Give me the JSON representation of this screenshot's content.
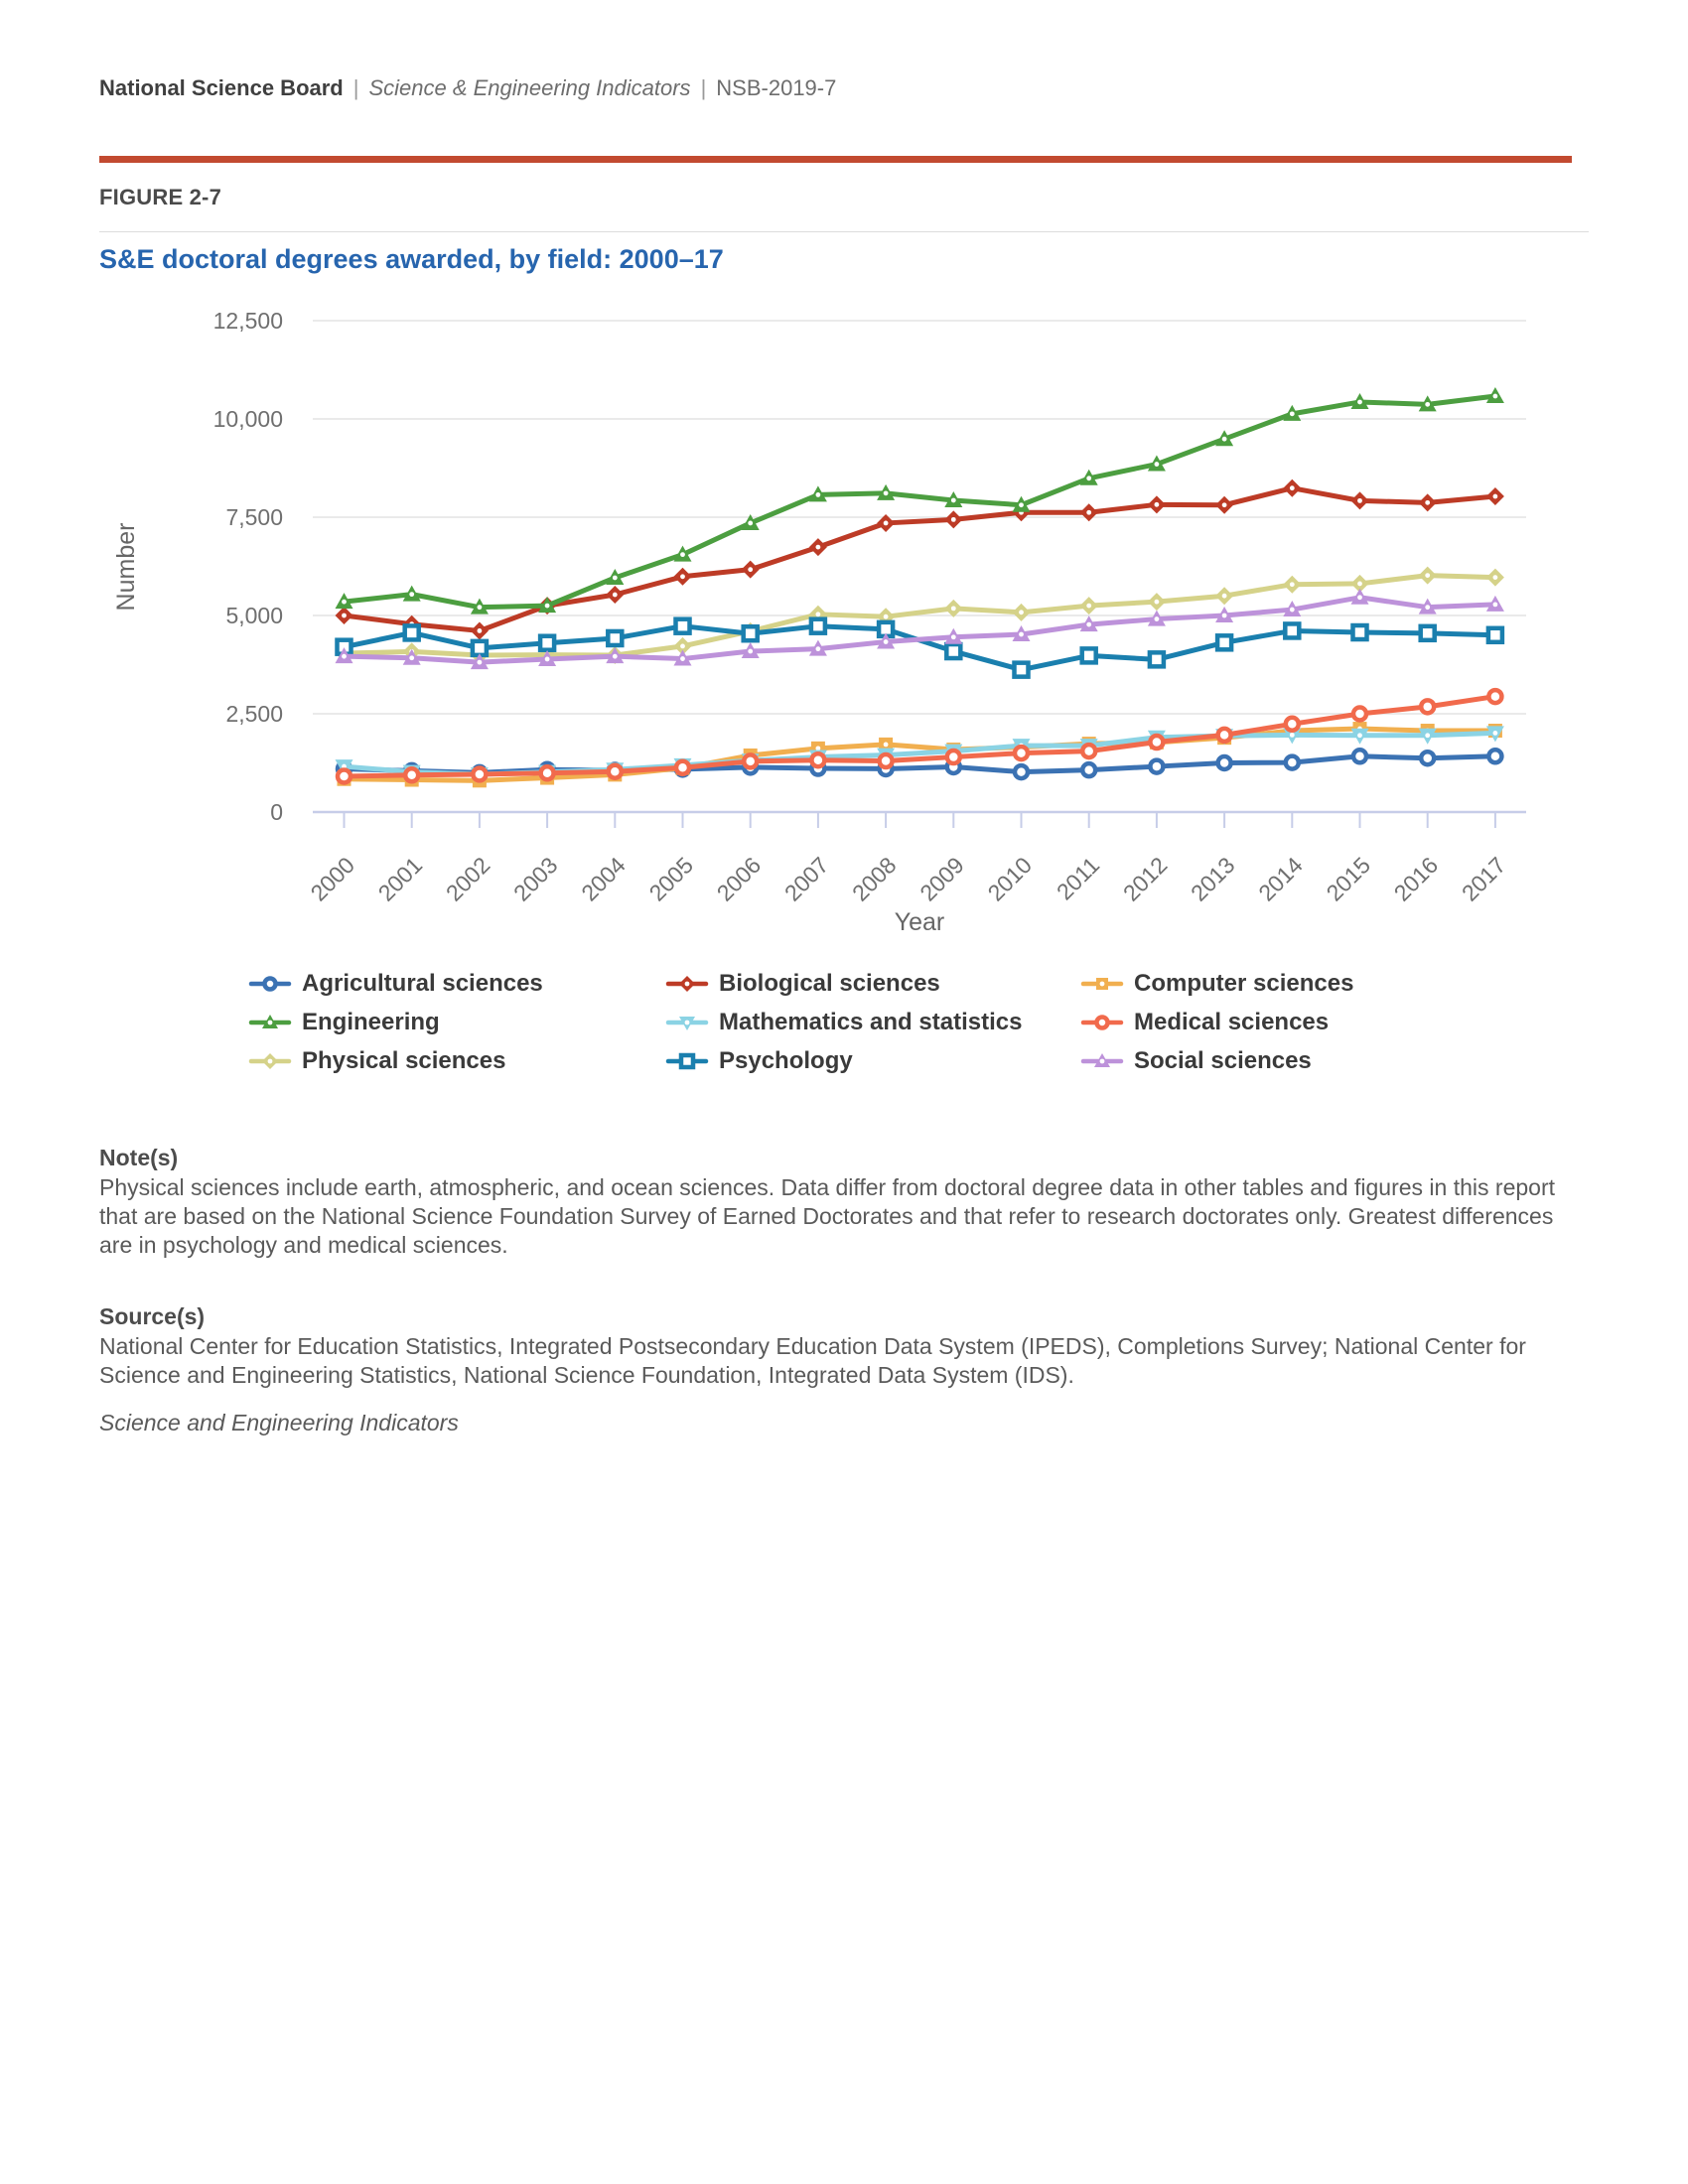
{
  "page": {
    "header": {
      "brand": "National Science Board",
      "separator": "|",
      "publication": "Science & Engineering Indicators",
      "code": "NSB-2019-7"
    },
    "figure_label": "FIGURE 2-7",
    "title": "S&E doctoral degrees awarded, by field: 2000–17",
    "title_color": "#2765ae",
    "accent_color": "#c24a30",
    "notes": {
      "heading": "Note(s)",
      "body": "Physical sciences include earth, atmospheric, and ocean sciences. Data differ from doctoral degree data in other tables and figures in this report that are based on the National Science Foundation Survey of Earned Doctorates and that refer to research doctorates only. Greatest differences are in psychology and medical sciences."
    },
    "sources": {
      "heading": "Source(s)",
      "body": "National Center for Education Statistics, Integrated Postsecondary Education Data System (IPEDS), Completions Survey; National Center for Science and Engineering Statistics, National Science Foundation, Integrated Data System (IDS)."
    },
    "footer_italic": "Science and Engineering Indicators"
  },
  "chart_data": {
    "type": "line",
    "title": "S&E doctoral degrees awarded, by field: 2000–17",
    "xlabel": "Year",
    "ylabel": "Number",
    "ylim": [
      0,
      12500
    ],
    "yticks": [
      0,
      2500,
      5000,
      7500,
      10000,
      12500
    ],
    "ytick_labels": [
      "0",
      "2,500",
      "5,000",
      "7,500",
      "10,000",
      "12,500"
    ],
    "grid": "horizontal",
    "legend_position": "bottom",
    "axis_color": "#c7cde8",
    "gridline_color": "#e4e4e4",
    "tick_text_color": "#6f6f6f",
    "axis_title_color": "#666666",
    "categories": [
      "2000",
      "2001",
      "2002",
      "2003",
      "2004",
      "2005",
      "2006",
      "2007",
      "2008",
      "2009",
      "2010",
      "2011",
      "2012",
      "2013",
      "2014",
      "2015",
      "2016",
      "2017"
    ],
    "series": [
      {
        "name": "Agricultural sciences",
        "color": "#3b72b3",
        "marker": "circle-open",
        "values": [
          1100,
          1050,
          1000,
          1080,
          1060,
          1090,
          1140,
          1110,
          1100,
          1150,
          1020,
          1070,
          1160,
          1250,
          1260,
          1420,
          1370,
          1420
        ]
      },
      {
        "name": "Biological sciences",
        "color": "#bd3b26",
        "marker": "diamond",
        "values": [
          5000,
          4780,
          4610,
          5250,
          5530,
          5990,
          6170,
          6740,
          7350,
          7440,
          7620,
          7620,
          7820,
          7810,
          8240,
          7920,
          7870,
          8030
        ]
      },
      {
        "name": "Computer sciences",
        "color": "#f1af4f",
        "marker": "square",
        "values": [
          840,
          820,
          800,
          870,
          950,
          1120,
          1440,
          1620,
          1720,
          1590,
          1650,
          1740,
          1770,
          1890,
          2070,
          2120,
          2070,
          2070
        ]
      },
      {
        "name": "Engineering",
        "color": "#4c9e40",
        "marker": "triangle-up",
        "values": [
          5350,
          5540,
          5210,
          5250,
          5960,
          6550,
          7350,
          8070,
          8110,
          7930,
          7810,
          8490,
          8850,
          9490,
          10130,
          10430,
          10370,
          10580
        ]
      },
      {
        "name": "Mathematics and statistics",
        "color": "#8bd3e4",
        "marker": "triangle-down",
        "values": [
          1160,
          1020,
          960,
          1020,
          1080,
          1190,
          1310,
          1400,
          1450,
          1550,
          1690,
          1690,
          1900,
          1940,
          1960,
          1950,
          1950,
          2010
        ]
      },
      {
        "name": "Medical sciences",
        "color": "#f16a4c",
        "marker": "circle-open",
        "values": [
          910,
          940,
          960,
          990,
          1030,
          1130,
          1290,
          1320,
          1300,
          1400,
          1500,
          1550,
          1780,
          1960,
          2240,
          2500,
          2680,
          2940
        ]
      },
      {
        "name": "Physical sciences",
        "color": "#d5d289",
        "marker": "diamond",
        "values": [
          4040,
          4080,
          3990,
          4000,
          3990,
          4220,
          4600,
          5030,
          4970,
          5180,
          5080,
          5250,
          5350,
          5500,
          5790,
          5810,
          6020,
          5970
        ]
      },
      {
        "name": "Psychology",
        "color": "#1a7fae",
        "marker": "square-open",
        "values": [
          4200,
          4560,
          4170,
          4300,
          4420,
          4730,
          4540,
          4730,
          4650,
          4090,
          3620,
          3980,
          3880,
          4310,
          4610,
          4570,
          4550,
          4500
        ]
      },
      {
        "name": "Social sciences",
        "color": "#bd92da",
        "marker": "triangle-up",
        "values": [
          3960,
          3920,
          3810,
          3890,
          3960,
          3900,
          4090,
          4150,
          4330,
          4450,
          4520,
          4770,
          4910,
          5000,
          5150,
          5460,
          5210,
          5280
        ]
      }
    ]
  }
}
